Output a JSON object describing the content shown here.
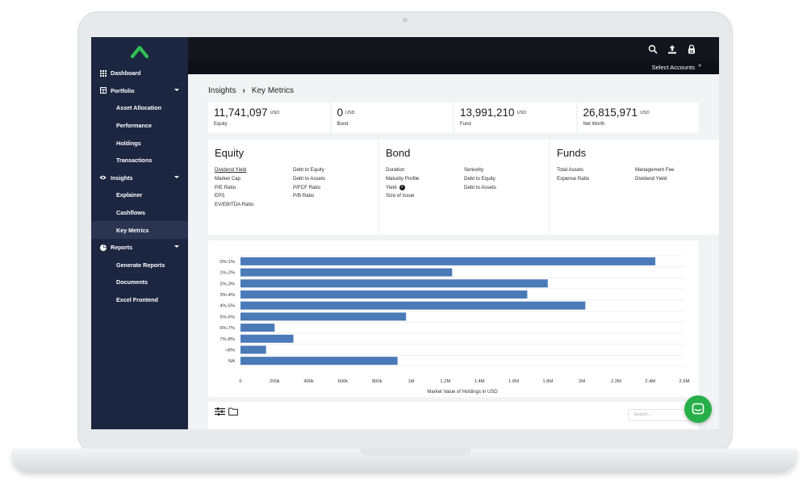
{
  "nav": {
    "items": [
      {
        "label": "Dashboard",
        "icon": "grid-icon"
      },
      {
        "label": "Portfolio",
        "icon": "table-icon"
      },
      {
        "label": "Asset Allocation"
      },
      {
        "label": "Performance"
      },
      {
        "label": "Holdings"
      },
      {
        "label": "Transactions"
      },
      {
        "label": "Insights",
        "icon": "eye-icon"
      },
      {
        "label": "Explainer"
      },
      {
        "label": "Cashflows"
      },
      {
        "label": "Key Metrics"
      },
      {
        "label": "Reports",
        "icon": "pie-chart-icon"
      },
      {
        "label": "Generate Reports"
      },
      {
        "label": "Documents"
      },
      {
        "label": "Excel Frontend"
      }
    ]
  },
  "topbar": {
    "icons": [
      "search-icon",
      "upload-icon",
      "lock-icon"
    ],
    "select_accounts": "Select Accounts"
  },
  "breadcrumb": {
    "parent": "Insights",
    "current": "Key Metrics"
  },
  "stats": [
    {
      "value": "11,741,097",
      "unit": "USD",
      "label": "Equity"
    },
    {
      "value": "0",
      "unit": "USD",
      "label": "Bond"
    },
    {
      "value": "13,991,210",
      "unit": "USD",
      "label": "Fund"
    },
    {
      "value": "26,815,971",
      "unit": "USD",
      "label": "Net Worth"
    }
  ],
  "metrics": {
    "equity": {
      "title": "Equity",
      "col1": [
        "Dividend Yield",
        "Market Cap",
        "P/E Ratio",
        "EPS",
        "EV/EBITDA Ratio"
      ],
      "col2": [
        "Debt to Equity",
        "Debt to Assets",
        "P/FCF Ratio",
        "P/B Ratio"
      ]
    },
    "bond": {
      "title": "Bond",
      "col1": [
        "Duration",
        "Maturity Profile",
        "Yield",
        "Size of Issue"
      ],
      "col2": [
        "Seniority",
        "Debt to Equity",
        "Debt to Assets"
      ]
    },
    "funds": {
      "title": "Funds",
      "col1": [
        "Total Assets",
        "Expense Ratio"
      ],
      "col2": [
        "Management Fee",
        "Dividend Yield"
      ]
    }
  },
  "chart_data": {
    "type": "bar",
    "orientation": "horizontal",
    "categories": [
      "0%-1%",
      "1%-2%",
      "2%-3%",
      "3%-4%",
      "4%-5%",
      "5%-6%",
      "6%-7%",
      "7%-8%",
      ">8%",
      "NA"
    ],
    "values": [
      2430000,
      1240000,
      1800000,
      1680000,
      2020000,
      970000,
      200000,
      310000,
      150000,
      920000
    ],
    "xlabel": "Market Value of Holdings in USD",
    "ylabel": "",
    "xlim": [
      0,
      2600000
    ],
    "x_ticks": [
      "0",
      "200k",
      "400k",
      "600k",
      "800k",
      "1M",
      "1.2M",
      "1.4M",
      "1.6M",
      "1.8M",
      "2M",
      "2.2M",
      "2.4M",
      "2.6M"
    ],
    "bar_color": "#4a7ab8",
    "grid": true
  },
  "bottom": {
    "search_placeholder": "Search..."
  },
  "colors": {
    "sidebar": "#1c2640",
    "topbar": "#12151c",
    "accent": "#27b049",
    "bar": "#4a7ab8"
  }
}
